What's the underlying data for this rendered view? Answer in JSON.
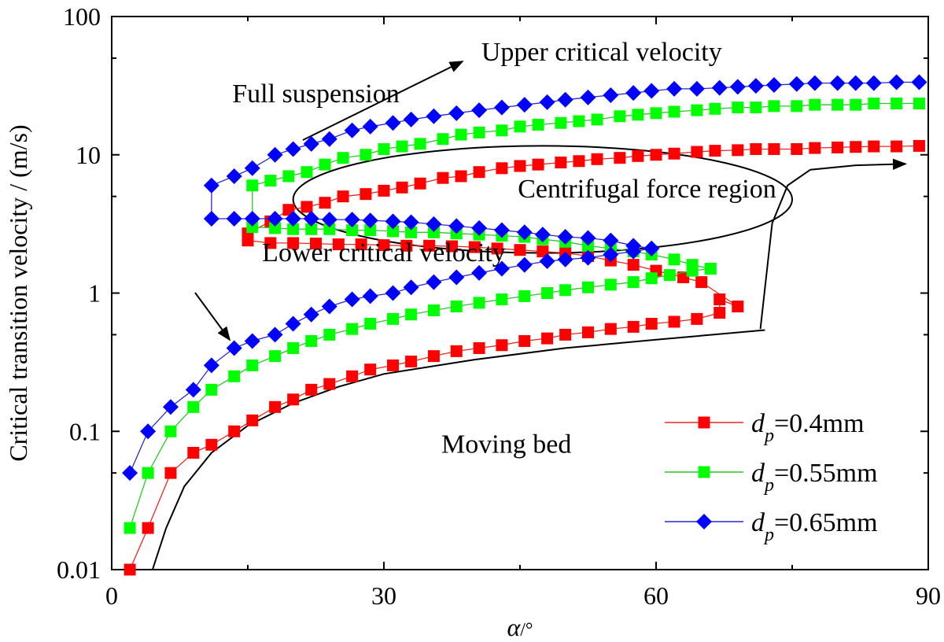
{
  "chart_data": {
    "type": "scatter",
    "xlabel": "α",
    "xlabel_unit": "/°",
    "ylabel": "Critical transition velocity / (m/s)",
    "xlim": [
      0,
      90
    ],
    "ylim": [
      0.01,
      100
    ],
    "yscale": "log",
    "x_ticks": [
      0,
      30,
      60,
      90
    ],
    "x_tick_labels": [
      "0",
      "30",
      "60",
      "90"
    ],
    "y_ticks": [
      0.01,
      0.1,
      1,
      10,
      100
    ],
    "y_tick_labels": [
      "0.01",
      "0.1",
      "1",
      "10",
      "100"
    ],
    "legend_position": "bottom-right",
    "annotations": [
      {
        "text": "Upper critical velocity",
        "x": 54,
        "y": 48
      },
      {
        "text": "Full suspension",
        "x": 22.5,
        "y": 24
      },
      {
        "text": "Centrifugal force region",
        "x": 59,
        "y": 4.9
      },
      {
        "text": "Lower critical velocity",
        "x": 30,
        "y": 1.7
      },
      {
        "text": "Moving bed",
        "x": 43.5,
        "y": 0.07
      }
    ],
    "series": [
      {
        "name_main": "d",
        "name_sub": "p",
        "name_rest": "=0.4mm",
        "color": "#ff0000",
        "line_color": "#e8281e",
        "marker": "square",
        "lower": [
          [
            2,
            0.01
          ],
          [
            4,
            0.02
          ],
          [
            6.5,
            0.05
          ],
          [
            9,
            0.07
          ],
          [
            11,
            0.08
          ],
          [
            13.5,
            0.1
          ],
          [
            15.5,
            0.12
          ],
          [
            18,
            0.15
          ],
          [
            20,
            0.17
          ],
          [
            22,
            0.2
          ],
          [
            24,
            0.22
          ],
          [
            26.5,
            0.25
          ],
          [
            28.5,
            0.28
          ],
          [
            31,
            0.3
          ],
          [
            33,
            0.32
          ],
          [
            35.5,
            0.35
          ],
          [
            38,
            0.38
          ],
          [
            40.5,
            0.4
          ],
          [
            43,
            0.42
          ],
          [
            45.5,
            0.45
          ],
          [
            48,
            0.47
          ],
          [
            50,
            0.5
          ],
          [
            52.5,
            0.52
          ],
          [
            55,
            0.55
          ],
          [
            57.5,
            0.57
          ],
          [
            59.5,
            0.6
          ],
          [
            62,
            0.62
          ],
          [
            64.5,
            0.65
          ],
          [
            67,
            0.72
          ]
        ],
        "turn": [
          [
            67,
            0.9
          ],
          [
            69,
            0.8
          ]
        ],
        "middle": [
          [
            65,
            1.2
          ],
          [
            63,
            1.3
          ],
          [
            60,
            1.45
          ],
          [
            57.5,
            1.6
          ],
          [
            55,
            1.72
          ],
          [
            52.5,
            1.85
          ],
          [
            50,
            1.95
          ],
          [
            47.5,
            2.0
          ],
          [
            45,
            2.05
          ],
          [
            42.5,
            2.1
          ],
          [
            40,
            2.15
          ],
          [
            37.5,
            2.18
          ],
          [
            35,
            2.2
          ],
          [
            32.5,
            2.2
          ],
          [
            30,
            2.22
          ],
          [
            27.5,
            2.25
          ],
          [
            25,
            2.25
          ],
          [
            22.5,
            2.28
          ],
          [
            20,
            2.3
          ],
          [
            17.5,
            2.3
          ],
          [
            15,
            2.4
          ]
        ],
        "upper": [
          [
            15,
            2.7
          ],
          [
            17.5,
            3.3
          ],
          [
            19.5,
            4.0
          ],
          [
            21.5,
            4.2
          ],
          [
            23.5,
            4.5
          ],
          [
            25.5,
            5.0
          ],
          [
            28,
            5.2
          ],
          [
            30,
            5.5
          ],
          [
            32,
            5.8
          ],
          [
            34,
            6.2
          ],
          [
            36.5,
            6.8
          ],
          [
            38.5,
            7.0
          ],
          [
            40.5,
            7.5
          ],
          [
            43,
            8.0
          ],
          [
            45,
            8.3
          ],
          [
            47,
            8.5
          ],
          [
            49.5,
            8.8
          ],
          [
            51.5,
            9.0
          ],
          [
            53.5,
            9.3
          ],
          [
            56,
            9.5
          ],
          [
            58,
            9.8
          ],
          [
            60,
            10.0
          ],
          [
            62,
            10.2
          ],
          [
            64.5,
            10.5
          ],
          [
            66.5,
            10.7
          ],
          [
            69,
            10.8
          ],
          [
            71,
            11.0
          ],
          [
            73,
            11.0
          ],
          [
            75.5,
            11.0
          ],
          [
            77.5,
            11.2
          ],
          [
            80,
            11.3
          ],
          [
            82,
            11.4
          ],
          [
            84,
            11.5
          ],
          [
            86.5,
            11.5
          ],
          [
            89,
            11.6
          ]
        ]
      },
      {
        "name_main": "d",
        "name_sub": "p",
        "name_rest": "=0.55mm",
        "color": "#00ff00",
        "line_color": "#28c828",
        "marker": "square",
        "lower": [
          [
            2,
            0.02
          ],
          [
            4,
            0.05
          ],
          [
            6.5,
            0.1
          ],
          [
            9,
            0.15
          ],
          [
            11,
            0.2
          ],
          [
            13.5,
            0.25
          ],
          [
            15.5,
            0.3
          ],
          [
            18,
            0.35
          ],
          [
            20,
            0.4
          ],
          [
            22,
            0.45
          ],
          [
            24,
            0.5
          ],
          [
            26.5,
            0.55
          ],
          [
            28.5,
            0.6
          ],
          [
            31,
            0.65
          ],
          [
            33,
            0.7
          ],
          [
            35.5,
            0.75
          ],
          [
            38,
            0.8
          ],
          [
            40.5,
            0.85
          ],
          [
            43,
            0.9
          ],
          [
            45.5,
            0.95
          ],
          [
            48,
            1.0
          ],
          [
            50,
            1.05
          ],
          [
            52.5,
            1.1
          ],
          [
            55,
            1.15
          ],
          [
            57.5,
            1.2
          ],
          [
            59.5,
            1.28
          ],
          [
            61.5,
            1.35
          ],
          [
            64,
            1.45
          ],
          [
            66,
            1.5
          ]
        ],
        "middle": [
          [
            66,
            1.5
          ],
          [
            64,
            1.6
          ],
          [
            62,
            1.75
          ],
          [
            59.5,
            1.9
          ],
          [
            57.5,
            2.0
          ],
          [
            55,
            2.1
          ],
          [
            52.5,
            2.2
          ],
          [
            50,
            2.35
          ],
          [
            47.5,
            2.45
          ],
          [
            45.5,
            2.55
          ],
          [
            43,
            2.6
          ],
          [
            40.5,
            2.65
          ],
          [
            38,
            2.7
          ],
          [
            35.5,
            2.75
          ],
          [
            33,
            2.75
          ],
          [
            31,
            2.8
          ],
          [
            28.5,
            2.85
          ],
          [
            26.5,
            2.85
          ],
          [
            24,
            2.9
          ],
          [
            22,
            2.9
          ],
          [
            20,
            2.9
          ],
          [
            18,
            2.95
          ],
          [
            15.5,
            3.0
          ]
        ],
        "upper": [
          [
            15.5,
            6.0
          ],
          [
            17.5,
            6.5
          ],
          [
            19.5,
            7.0
          ],
          [
            21.5,
            7.5
          ],
          [
            23.5,
            8.5
          ],
          [
            25.5,
            9.5
          ],
          [
            28,
            10.0
          ],
          [
            30,
            11.0
          ],
          [
            32,
            11.5
          ],
          [
            34,
            12.0
          ],
          [
            36.5,
            13.0
          ],
          [
            38.5,
            14.0
          ],
          [
            40.5,
            14.5
          ],
          [
            43,
            15.0
          ],
          [
            45,
            16.0
          ],
          [
            47,
            16.5
          ],
          [
            49.5,
            17.0
          ],
          [
            51.5,
            17.5
          ],
          [
            53.5,
            18.0
          ],
          [
            56,
            19.0
          ],
          [
            58,
            19.5
          ],
          [
            60,
            20.0
          ],
          [
            62,
            20.5
          ],
          [
            64.5,
            21.0
          ],
          [
            66.5,
            21.5
          ],
          [
            69,
            22.0
          ],
          [
            71,
            22.0
          ],
          [
            73,
            22.5
          ],
          [
            75.5,
            22.5
          ],
          [
            77.5,
            23.0
          ],
          [
            80,
            23.0
          ],
          [
            82,
            23.0
          ],
          [
            84,
            23.5
          ],
          [
            86.5,
            23.5
          ],
          [
            89,
            23.5
          ]
        ]
      },
      {
        "name_main": "d",
        "name_sub": "p",
        "name_rest": "=0.65mm",
        "color": "#0000ff",
        "line_color": "#2828d2",
        "marker": "diamond",
        "lower": [
          [
            2,
            0.05
          ],
          [
            4,
            0.1
          ],
          [
            6.5,
            0.15
          ],
          [
            9,
            0.2
          ],
          [
            11,
            0.3
          ],
          [
            13.5,
            0.4
          ],
          [
            15.5,
            0.45
          ],
          [
            18,
            0.5
          ],
          [
            20,
            0.6
          ],
          [
            22,
            0.7
          ],
          [
            24,
            0.8
          ],
          [
            26.5,
            0.9
          ],
          [
            28.5,
            0.95
          ],
          [
            31,
            1.0
          ],
          [
            33,
            1.1
          ],
          [
            35.5,
            1.2
          ],
          [
            38,
            1.3
          ],
          [
            40.5,
            1.4
          ],
          [
            43,
            1.5
          ],
          [
            45.5,
            1.6
          ],
          [
            48,
            1.7
          ],
          [
            50,
            1.75
          ],
          [
            52.5,
            1.8
          ],
          [
            55,
            1.9
          ],
          [
            57.5,
            2.0
          ],
          [
            59.5,
            2.1
          ]
        ],
        "middle": [
          [
            59.5,
            2.1
          ],
          [
            57.5,
            2.2
          ],
          [
            55,
            2.4
          ],
          [
            52.5,
            2.5
          ],
          [
            50,
            2.55
          ],
          [
            47.5,
            2.65
          ],
          [
            45.5,
            2.75
          ],
          [
            43,
            2.85
          ],
          [
            40.5,
            2.95
          ],
          [
            38,
            3.05
          ],
          [
            35.5,
            3.15
          ],
          [
            33,
            3.25
          ],
          [
            31,
            3.3
          ],
          [
            28.5,
            3.35
          ],
          [
            26.5,
            3.4
          ],
          [
            24,
            3.4
          ],
          [
            22,
            3.45
          ],
          [
            20,
            3.45
          ],
          [
            18,
            3.45
          ],
          [
            15.5,
            3.45
          ],
          [
            13.5,
            3.45
          ],
          [
            11,
            3.45
          ]
        ],
        "upper": [
          [
            11,
            6.0
          ],
          [
            13.5,
            7.0
          ],
          [
            15.5,
            8.0
          ],
          [
            18,
            10.0
          ],
          [
            20,
            11.0
          ],
          [
            22,
            12.0
          ],
          [
            24,
            13.0
          ],
          [
            26.5,
            15.0
          ],
          [
            28.5,
            16.0
          ],
          [
            31,
            17.0
          ],
          [
            33,
            18.0
          ],
          [
            35.5,
            19.0
          ],
          [
            38,
            20.0
          ],
          [
            40.5,
            21.0
          ],
          [
            43,
            22.0
          ],
          [
            45.5,
            23.0
          ],
          [
            48,
            24.0
          ],
          [
            50,
            25.0
          ],
          [
            52.5,
            26.0
          ],
          [
            55,
            27.0
          ],
          [
            57.5,
            28.0
          ],
          [
            59.5,
            29.0
          ],
          [
            62,
            30.0
          ],
          [
            64.5,
            30.0
          ],
          [
            67,
            30.5
          ],
          [
            69,
            31.0
          ],
          [
            71,
            31.5
          ],
          [
            73,
            32.0
          ],
          [
            75.5,
            32.5
          ],
          [
            77.5,
            33.0
          ],
          [
            80,
            33.0
          ],
          [
            82,
            33.0
          ],
          [
            84,
            33.0
          ],
          [
            86.5,
            33.5
          ],
          [
            89,
            33.5
          ]
        ]
      }
    ],
    "boundary_curve": [
      [
        4.5,
        0.01
      ],
      [
        6,
        0.02
      ],
      [
        8,
        0.04
      ],
      [
        11,
        0.07
      ],
      [
        15,
        0.11
      ],
      [
        20,
        0.16
      ],
      [
        25,
        0.21
      ],
      [
        30,
        0.26
      ],
      [
        40,
        0.33
      ],
      [
        50,
        0.4
      ],
      [
        60,
        0.46
      ],
      [
        72,
        0.54
      ]
    ],
    "boundary_jump": [
      [
        71.5,
        0.55
      ],
      [
        72.8,
        3.2
      ],
      [
        74.5,
        6.0
      ],
      [
        77,
        7.8
      ],
      [
        82,
        8.4
      ],
      [
        87.5,
        8.6
      ]
    ],
    "ellipse": {
      "cx": 47.5,
      "cy": 4.6,
      "rx_deg": 27.5,
      "ry_top": 11.6,
      "ry_bottom": 1.95
    }
  }
}
